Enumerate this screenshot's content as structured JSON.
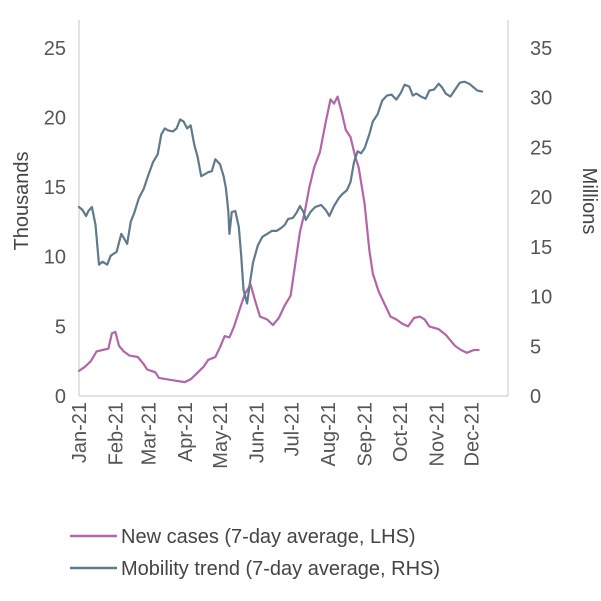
{
  "chart_data": {
    "type": "line",
    "title": "",
    "left_axis": {
      "label": "Thousands",
      "ylim": [
        0,
        27
      ],
      "ticks": [
        0,
        5,
        10,
        15,
        20,
        25
      ]
    },
    "right_axis": {
      "label": "Millions",
      "ylim": [
        0,
        37.8
      ],
      "ticks": [
        0,
        5,
        10,
        15,
        20,
        25,
        30,
        35
      ]
    },
    "x_axis": {
      "range": [
        0,
        365
      ],
      "tick_positions": [
        0,
        31,
        59,
        90,
        120,
        151,
        181,
        212,
        243,
        273,
        304,
        334
      ],
      "tick_labels": [
        "Jan-21",
        "Feb-21",
        "Mar-21",
        "Apr-21",
        "May-21",
        "Jun-21",
        "Jul-21",
        "Aug-21",
        "Sep-21",
        "Oct-21",
        "Nov-21",
        "Dec-21"
      ]
    },
    "series": [
      {
        "name": "New cases (7-day average, LHS)",
        "axis": "left",
        "color": "#b266a8",
        "points": [
          [
            0,
            1.8
          ],
          [
            5,
            2.1
          ],
          [
            10,
            2.5
          ],
          [
            15,
            3.2
          ],
          [
            20,
            3.3
          ],
          [
            25,
            3.4
          ],
          [
            28,
            4.5
          ],
          [
            31,
            4.6
          ],
          [
            34,
            3.6
          ],
          [
            38,
            3.2
          ],
          [
            43,
            2.9
          ],
          [
            50,
            2.8
          ],
          [
            55,
            2.3
          ],
          [
            58,
            1.9
          ],
          [
            65,
            1.7
          ],
          [
            68,
            1.3
          ],
          [
            75,
            1.2
          ],
          [
            82,
            1.1
          ],
          [
            90,
            1.0
          ],
          [
            95,
            1.2
          ],
          [
            100,
            1.6
          ],
          [
            106,
            2.1
          ],
          [
            110,
            2.6
          ],
          [
            116,
            2.8
          ],
          [
            120,
            3.5
          ],
          [
            124,
            4.3
          ],
          [
            128,
            4.2
          ],
          [
            132,
            5.0
          ],
          [
            137,
            6.3
          ],
          [
            141,
            7.3
          ],
          [
            146,
            8.0
          ],
          [
            150,
            6.8
          ],
          [
            154,
            5.7
          ],
          [
            160,
            5.5
          ],
          [
            165,
            5.1
          ],
          [
            170,
            5.6
          ],
          [
            175,
            6.5
          ],
          [
            180,
            7.2
          ],
          [
            184,
            9.5
          ],
          [
            188,
            11.8
          ],
          [
            192,
            13.2
          ],
          [
            196,
            15.0
          ],
          [
            200,
            16.4
          ],
          [
            205,
            17.5
          ],
          [
            210,
            19.7
          ],
          [
            214,
            21.3
          ],
          [
            217,
            21.0
          ],
          [
            220,
            21.5
          ],
          [
            224,
            20.2
          ],
          [
            227,
            19.1
          ],
          [
            231,
            18.6
          ],
          [
            235,
            17.2
          ],
          [
            238,
            16.4
          ],
          [
            243,
            13.8
          ],
          [
            247,
            10.5
          ],
          [
            250,
            8.8
          ],
          [
            255,
            7.5
          ],
          [
            260,
            6.6
          ],
          [
            265,
            5.7
          ],
          [
            270,
            5.5
          ],
          [
            275,
            5.2
          ],
          [
            280,
            5.0
          ],
          [
            285,
            5.6
          ],
          [
            290,
            5.7
          ],
          [
            294,
            5.5
          ],
          [
            298,
            5.0
          ],
          [
            302,
            4.9
          ],
          [
            306,
            4.8
          ],
          [
            312,
            4.4
          ],
          [
            315,
            4.1
          ],
          [
            320,
            3.6
          ],
          [
            325,
            3.3
          ],
          [
            330,
            3.1
          ],
          [
            336,
            3.3
          ],
          [
            340,
            3.3
          ]
        ]
      },
      {
        "name": "Mobility trend (7-day average, RHS)",
        "axis": "right",
        "color": "#5f7a8c",
        "points": [
          [
            0,
            19.0
          ],
          [
            3,
            18.7
          ],
          [
            6,
            18.1
          ],
          [
            8,
            18.6
          ],
          [
            11,
            19.0
          ],
          [
            14,
            17.2
          ],
          [
            17,
            13.2
          ],
          [
            20,
            13.5
          ],
          [
            24,
            13.2
          ],
          [
            27,
            14.1
          ],
          [
            32,
            14.5
          ],
          [
            36,
            16.3
          ],
          [
            38,
            15.9
          ],
          [
            41,
            15.3
          ],
          [
            44,
            17.5
          ],
          [
            47,
            18.4
          ],
          [
            51,
            19.9
          ],
          [
            55,
            20.8
          ],
          [
            59,
            22.2
          ],
          [
            63,
            23.5
          ],
          [
            67,
            24.3
          ],
          [
            70,
            26.3
          ],
          [
            73,
            26.9
          ],
          [
            76,
            26.7
          ],
          [
            80,
            26.6
          ],
          [
            83,
            26.9
          ],
          [
            86,
            27.8
          ],
          [
            89,
            27.6
          ],
          [
            92,
            26.9
          ],
          [
            95,
            27.2
          ],
          [
            98,
            25.3
          ],
          [
            101,
            24.0
          ],
          [
            104,
            22.1
          ],
          [
            107,
            22.3
          ],
          [
            110,
            22.5
          ],
          [
            113,
            22.6
          ],
          [
            116,
            23.8
          ],
          [
            120,
            23.3
          ],
          [
            123,
            22.1
          ],
          [
            125,
            20.9
          ],
          [
            127,
            18.6
          ],
          [
            128,
            16.3
          ],
          [
            130,
            18.5
          ],
          [
            133,
            18.6
          ],
          [
            136,
            17.0
          ],
          [
            138,
            14.1
          ],
          [
            140,
            10.7
          ],
          [
            143,
            9.3
          ],
          [
            145,
            11.0
          ],
          [
            148,
            13.4
          ],
          [
            152,
            15.1
          ],
          [
            156,
            16.0
          ],
          [
            160,
            16.3
          ],
          [
            164,
            16.6
          ],
          [
            168,
            16.6
          ],
          [
            172,
            16.9
          ],
          [
            175,
            17.2
          ],
          [
            178,
            17.8
          ],
          [
            182,
            17.9
          ],
          [
            185,
            18.4
          ],
          [
            188,
            19.1
          ],
          [
            191,
            18.5
          ],
          [
            193,
            17.7
          ],
          [
            197,
            18.5
          ],
          [
            201,
            19.0
          ],
          [
            206,
            19.2
          ],
          [
            210,
            18.7
          ],
          [
            213,
            18.1
          ],
          [
            217,
            19.1
          ],
          [
            221,
            19.9
          ],
          [
            224,
            20.3
          ],
          [
            228,
            20.7
          ],
          [
            231,
            21.5
          ],
          [
            234,
            23.5
          ],
          [
            237,
            24.6
          ],
          [
            240,
            24.4
          ],
          [
            243,
            24.9
          ],
          [
            247,
            26.3
          ],
          [
            250,
            27.6
          ],
          [
            254,
            28.3
          ],
          [
            258,
            29.7
          ],
          [
            262,
            30.2
          ],
          [
            266,
            30.3
          ],
          [
            270,
            29.8
          ],
          [
            274,
            30.5
          ],
          [
            277,
            31.3
          ],
          [
            281,
            31.1
          ],
          [
            284,
            30.2
          ],
          [
            287,
            30.4
          ],
          [
            291,
            30.1
          ],
          [
            295,
            29.9
          ],
          [
            298,
            30.7
          ],
          [
            302,
            30.8
          ],
          [
            306,
            31.4
          ],
          [
            309,
            31.0
          ],
          [
            312,
            30.4
          ],
          [
            316,
            30.1
          ],
          [
            320,
            30.8
          ],
          [
            324,
            31.5
          ],
          [
            328,
            31.6
          ],
          [
            332,
            31.4
          ],
          [
            336,
            31.0
          ],
          [
            339,
            30.7
          ],
          [
            343,
            30.6
          ]
        ]
      }
    ],
    "legend_position": "bottom"
  }
}
